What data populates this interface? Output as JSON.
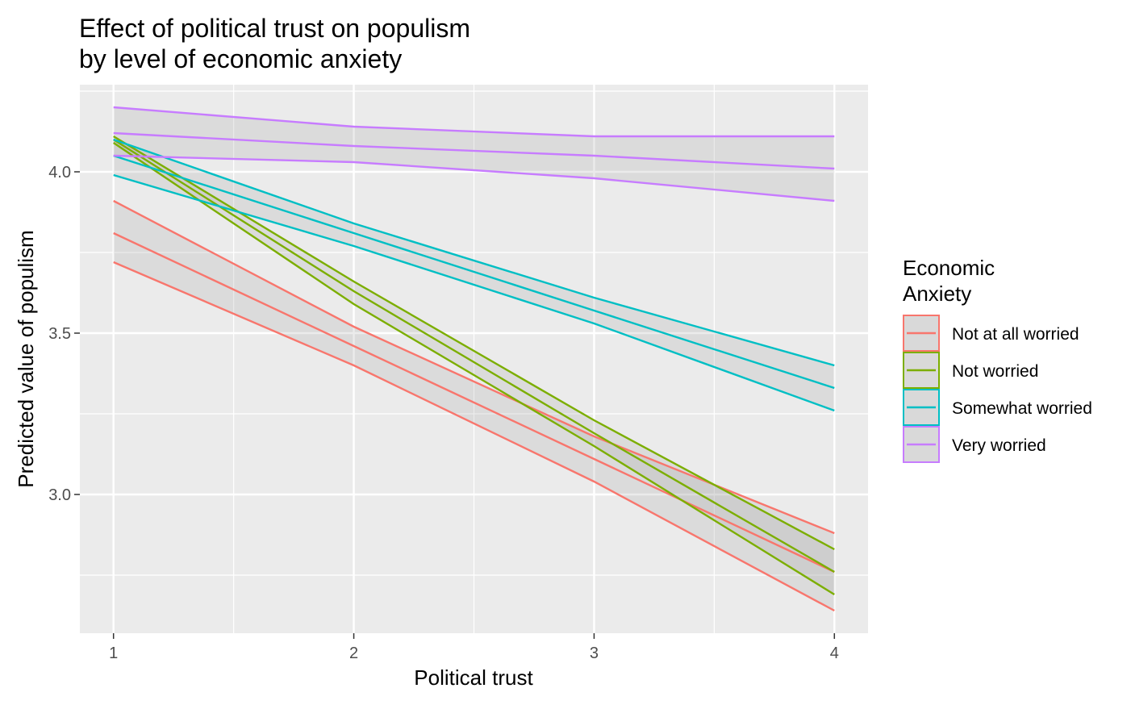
{
  "chart_data": {
    "type": "line",
    "title_lines": [
      "Effect of political trust on populism",
      "by level of economic anxiety"
    ],
    "xlabel": "Political trust",
    "ylabel": "Predicted value of populism",
    "xlim": [
      0.86,
      4.14
    ],
    "ylim": [
      2.57,
      4.27
    ],
    "x_ticks": [
      1,
      2,
      3,
      4
    ],
    "x_tick_labels": [
      "1",
      "2",
      "3",
      "4"
    ],
    "y_ticks": [
      3.0,
      3.5,
      4.0
    ],
    "y_tick_labels": [
      "3.0",
      "3.5",
      "4.0"
    ],
    "x_minor": [
      1.5,
      2.5,
      3.5
    ],
    "y_minor": [
      2.75,
      3.25,
      3.75,
      4.25
    ],
    "grid": true,
    "legend": {
      "title_lines": [
        "Economic",
        "Anxiety"
      ],
      "position": "right"
    },
    "x": [
      1,
      2,
      3,
      4
    ],
    "series": [
      {
        "name": "Not at all worried",
        "color": "#F8766D",
        "fit": [
          3.81,
          3.46,
          3.11,
          2.76
        ],
        "upper": [
          3.91,
          3.52,
          3.18,
          2.88
        ],
        "lower": [
          3.72,
          3.4,
          3.04,
          2.64
        ]
      },
      {
        "name": "Not worried",
        "color": "#7CAE00",
        "fit": [
          4.1,
          3.63,
          3.19,
          2.76
        ],
        "upper": [
          4.11,
          3.66,
          3.23,
          2.83
        ],
        "lower": [
          4.09,
          3.59,
          3.15,
          2.69
        ]
      },
      {
        "name": "Somewhat worried",
        "color": "#00BFC4",
        "fit": [
          4.05,
          3.81,
          3.57,
          3.33
        ],
        "upper": [
          4.1,
          3.84,
          3.61,
          3.4
        ],
        "lower": [
          3.99,
          3.77,
          3.53,
          3.26
        ]
      },
      {
        "name": "Very worried",
        "color": "#C77CFF",
        "fit": [
          4.12,
          4.08,
          4.05,
          4.01
        ],
        "upper": [
          4.2,
          4.14,
          4.11,
          4.11
        ],
        "lower": [
          4.05,
          4.03,
          3.98,
          3.91
        ]
      }
    ]
  }
}
